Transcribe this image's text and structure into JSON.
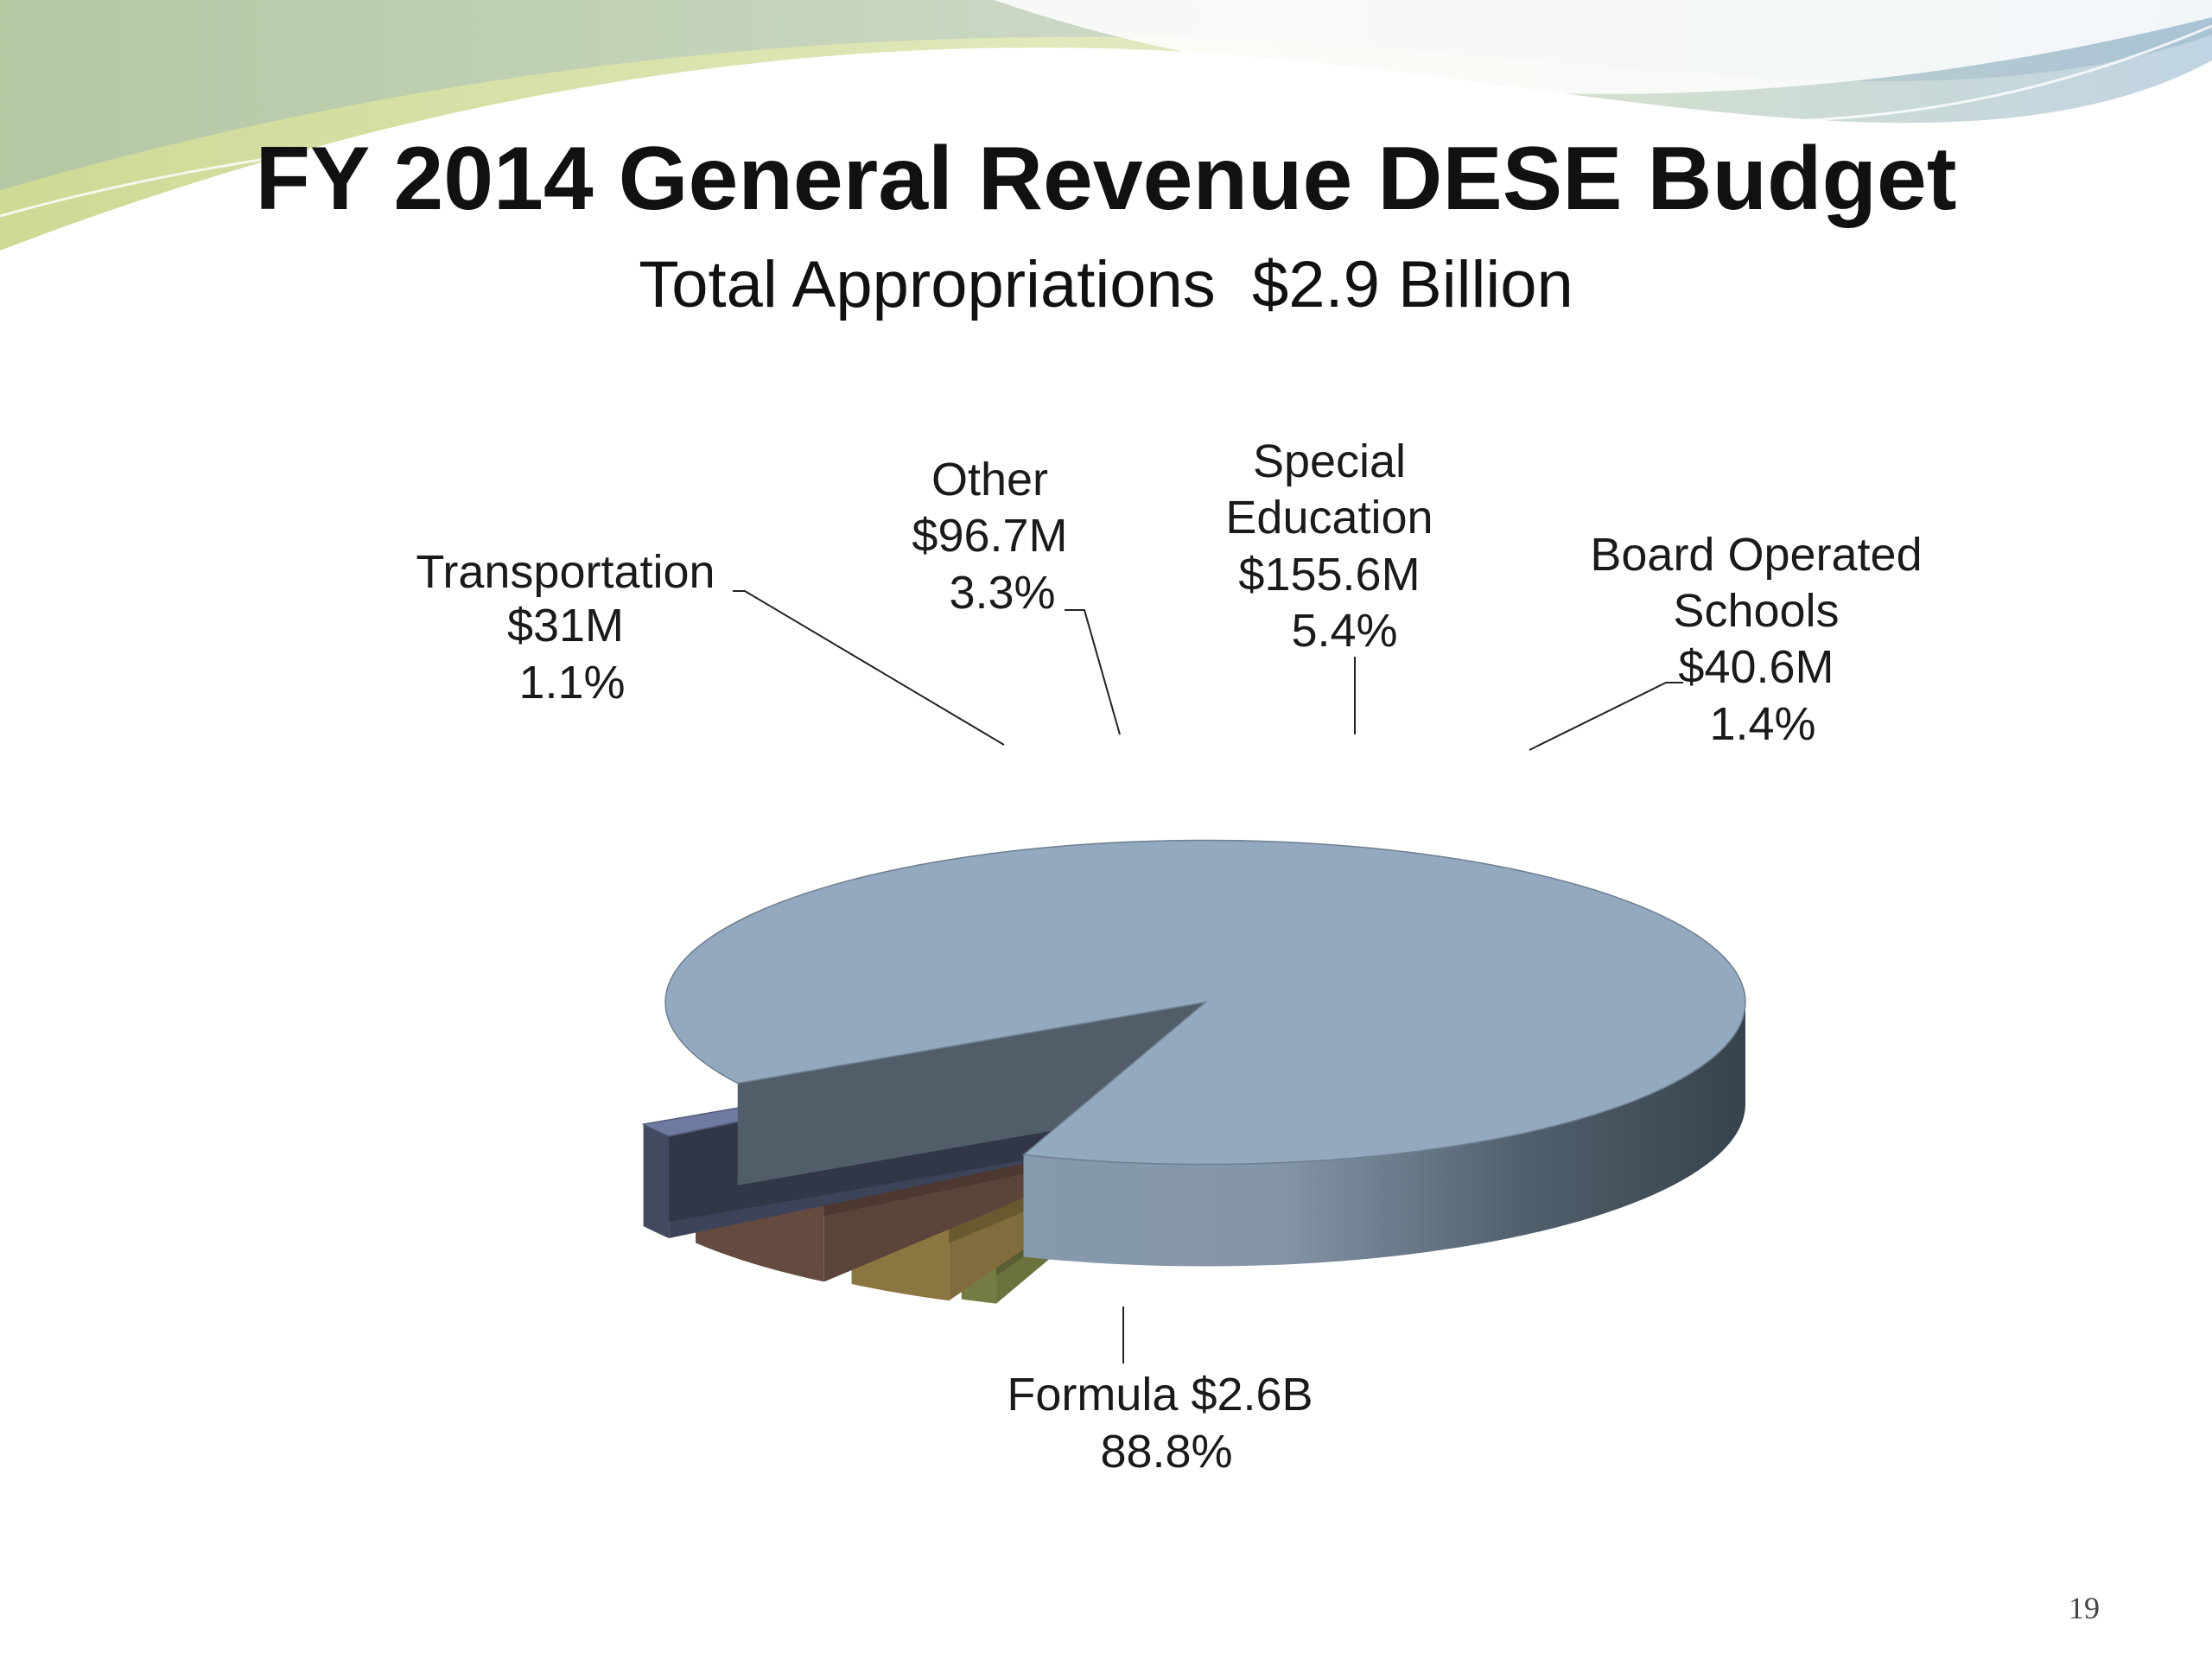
{
  "slide": {
    "title": "FY 2014 General Revenue DESE Budget",
    "subtitle": "Total Appropriations  $2.9 Billion",
    "page_number": "19"
  },
  "chart_data": {
    "type": "pie",
    "style": "3d-exploded",
    "title": "FY 2014 General Revenue DESE Budget",
    "subtitle": "Total Appropriations  $2.9 Billion",
    "slices": [
      {
        "label": "Formula",
        "amount": "$2.6B",
        "percent": "88.8%",
        "value": 88.8,
        "color": "#93a9bf"
      },
      {
        "label": "Transportation",
        "amount": "$31M",
        "percent": "1.1%",
        "value": 1.1,
        "color": "#c3cf6f"
      },
      {
        "label": "Other",
        "amount": "$96.7M",
        "percent": "3.3%",
        "value": 3.3,
        "color": "#e8c56d"
      },
      {
        "label": "Special Education",
        "amount": "$155.6M",
        "percent": "5.4%",
        "value": 5.4,
        "color": "#a87c6a"
      },
      {
        "label": "Board Operated Schools",
        "amount": "$40.6M",
        "percent": "1.4%",
        "value": 1.4,
        "color": "#6e7aa0"
      }
    ],
    "label_text": {
      "formula": [
        "Formula $2.6B",
        "88.8%"
      ],
      "transportation": [
        "Transportation",
        "$31M",
        "1.1%"
      ],
      "other": [
        "Other",
        "$96.7M",
        "3.3%"
      ],
      "special_education": [
        "Special",
        "Education",
        "$155.6M",
        "5.4%"
      ],
      "board_operated": [
        "Board Operated",
        "Schools",
        "$40.6M",
        "1.4%"
      ]
    }
  }
}
